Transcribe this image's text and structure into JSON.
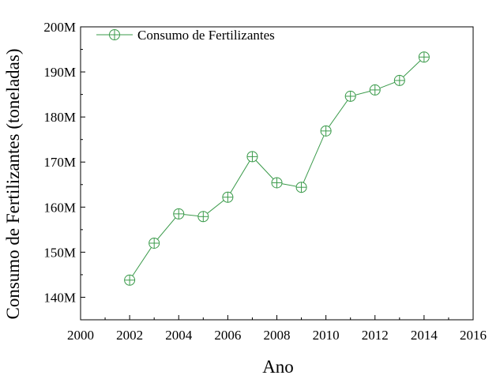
{
  "chart_data": {
    "type": "line",
    "xlabel": "Ano",
    "ylabel": "Consumo de Fertilizantes (toneladas)",
    "xlim": [
      2000,
      2016
    ],
    "ylim": [
      135,
      200
    ],
    "x_ticks": [
      2000,
      2002,
      2004,
      2006,
      2008,
      2010,
      2012,
      2014,
      2016
    ],
    "x_tick_labels": [
      "2000",
      "2002",
      "2004",
      "2006",
      "2008",
      "2010",
      "2012",
      "2014",
      "2016"
    ],
    "y_ticks": [
      140,
      150,
      160,
      170,
      180,
      190,
      200
    ],
    "y_tick_labels": [
      "140M",
      "150M",
      "160M",
      "170M",
      "180M",
      "190M",
      "200M"
    ],
    "grid": false,
    "legend_position": "top-left",
    "series": [
      {
        "name": "Consumo de Fertilizantes",
        "color": "#3a9a4a",
        "marker": "circle-plus",
        "x": [
          2002,
          2003,
          2004,
          2005,
          2006,
          2007,
          2008,
          2009,
          2010,
          2011,
          2012,
          2013,
          2014
        ],
        "y": [
          143.8,
          152.0,
          158.5,
          157.9,
          162.2,
          171.2,
          165.4,
          164.4,
          176.9,
          184.6,
          186.0,
          188.1,
          193.3
        ]
      }
    ]
  }
}
